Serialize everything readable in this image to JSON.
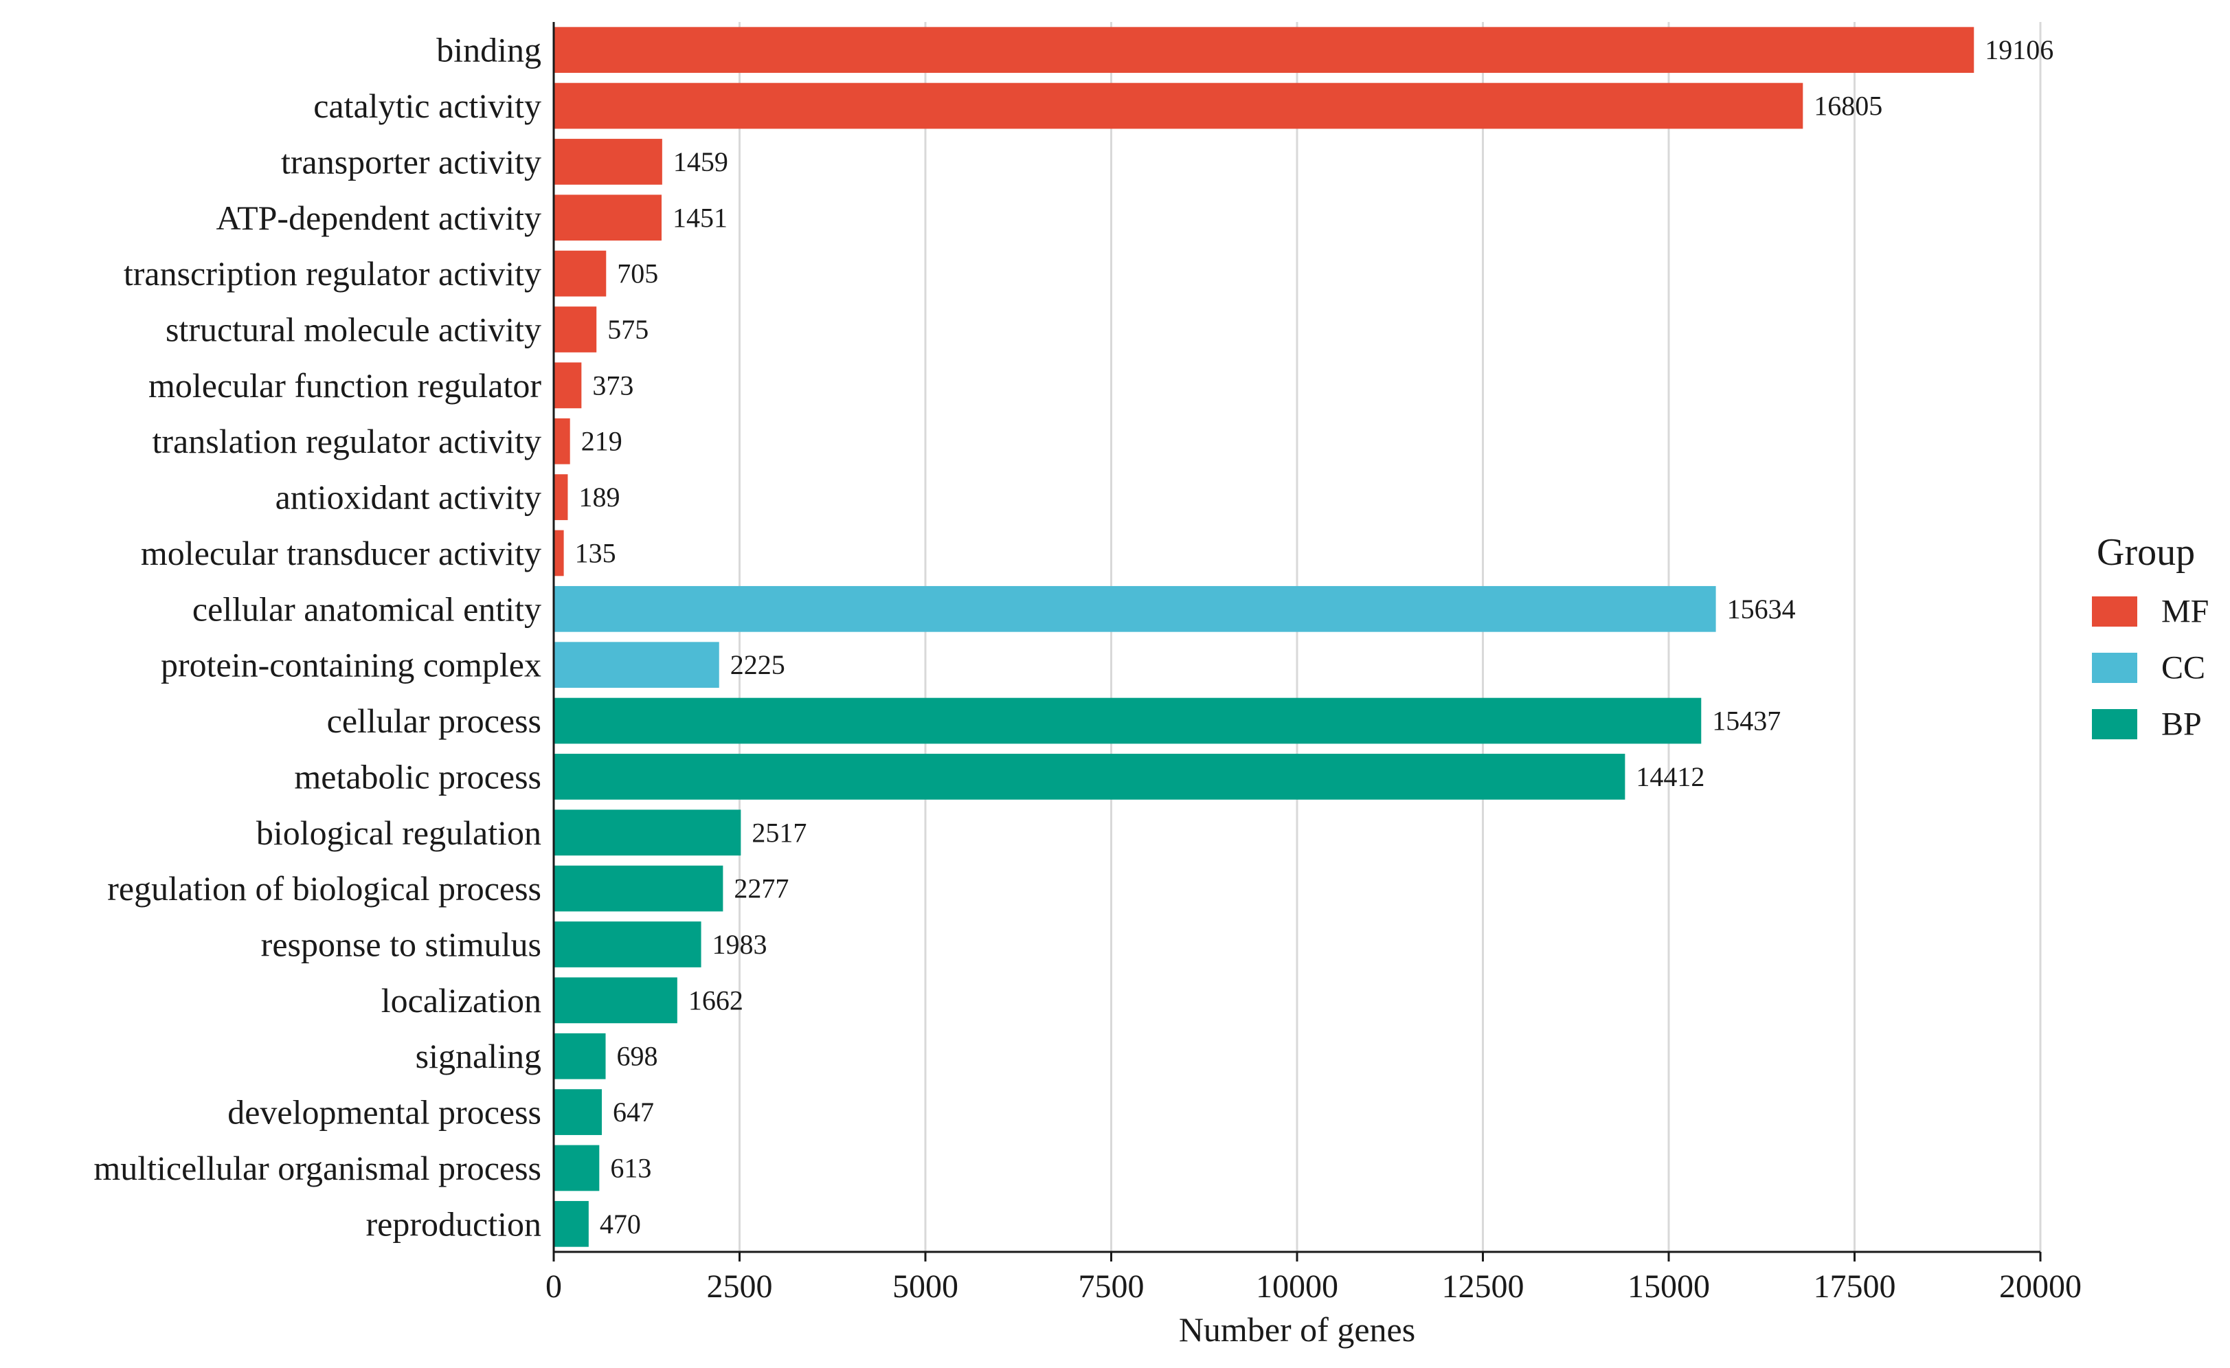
{
  "chart_data": {
    "type": "bar",
    "orientation": "horizontal",
    "title": "",
    "xlabel": "Number of genes",
    "ylabel": "",
    "xlim": [
      0,
      20000
    ],
    "xticks": [
      0,
      2500,
      5000,
      7500,
      10000,
      12500,
      15000,
      17500,
      20000
    ],
    "grid": "vertical",
    "legend": {
      "title": "Group",
      "position": "right",
      "entries": [
        {
          "name": "MF",
          "color": "#E64B35"
        },
        {
          "name": "CC",
          "color": "#4DBBD5"
        },
        {
          "name": "BP",
          "color": "#00A087"
        }
      ]
    },
    "bars": [
      {
        "category": "binding",
        "value": 19106,
        "group": "MF"
      },
      {
        "category": "catalytic activity",
        "value": 16805,
        "group": "MF"
      },
      {
        "category": "transporter activity",
        "value": 1459,
        "group": "MF"
      },
      {
        "category": "ATP-dependent activity",
        "value": 1451,
        "group": "MF"
      },
      {
        "category": "transcription regulator activity",
        "value": 705,
        "group": "MF"
      },
      {
        "category": "structural molecule activity",
        "value": 575,
        "group": "MF"
      },
      {
        "category": "molecular function regulator",
        "value": 373,
        "group": "MF"
      },
      {
        "category": "translation regulator activity",
        "value": 219,
        "group": "MF"
      },
      {
        "category": "antioxidant activity",
        "value": 189,
        "group": "MF"
      },
      {
        "category": "molecular transducer activity",
        "value": 135,
        "group": "MF"
      },
      {
        "category": "cellular anatomical entity",
        "value": 15634,
        "group": "CC"
      },
      {
        "category": "protein-containing complex",
        "value": 2225,
        "group": "CC"
      },
      {
        "category": "cellular process",
        "value": 15437,
        "group": "BP"
      },
      {
        "category": "metabolic process",
        "value": 14412,
        "group": "BP"
      },
      {
        "category": "biological regulation",
        "value": 2517,
        "group": "BP"
      },
      {
        "category": "regulation of biological process",
        "value": 2277,
        "group": "BP"
      },
      {
        "category": "response to stimulus",
        "value": 1983,
        "group": "BP"
      },
      {
        "category": "localization",
        "value": 1662,
        "group": "BP"
      },
      {
        "category": "signaling",
        "value": 698,
        "group": "BP"
      },
      {
        "category": "developmental process",
        "value": 647,
        "group": "BP"
      },
      {
        "category": "multicellular organismal process",
        "value": 613,
        "group": "BP"
      },
      {
        "category": "reproduction",
        "value": 470,
        "group": "BP"
      }
    ]
  }
}
